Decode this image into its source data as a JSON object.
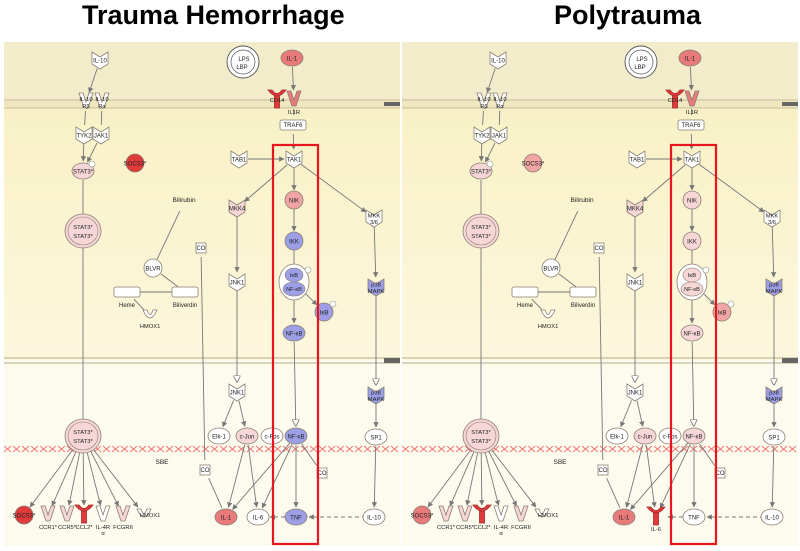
{
  "panels": [
    {
      "title": "Trauma Hemorrhage",
      "nodes": [
        {
          "id": "il10_top",
          "label": "IL-10",
          "shape": "chevron",
          "c": "w"
        },
        {
          "id": "lps",
          "label": "LPS",
          "label2": "LBP",
          "shape": "lps"
        },
        {
          "id": "il1_top",
          "label": "IL-1",
          "shape": "oval",
          "c": "r2"
        },
        {
          "id": "il10rb",
          "label": "IL-10",
          "label2": "Rβ",
          "shape": "recv",
          "c": "w"
        },
        {
          "id": "il10ra",
          "label": "IL-10",
          "label2": "Rα",
          "shape": "recv",
          "c": "w"
        },
        {
          "id": "cd14",
          "label": "CD14",
          "shape": "recY",
          "c": "r3"
        },
        {
          "id": "il1r",
          "label": "IL1R",
          "shape": "recv",
          "c": "r2"
        },
        {
          "id": "traf6",
          "label": "TRAF6",
          "shape": "rect",
          "c": "w"
        },
        {
          "id": "tyk2",
          "label": "TYK2",
          "shape": "chevron",
          "c": "w"
        },
        {
          "id": "jak1",
          "label": "JAK1",
          "shape": "chevron",
          "c": "w"
        },
        {
          "id": "socs3_t",
          "label": "SOCS3*",
          "shape": "circ",
          "c": "r3"
        },
        {
          "id": "stat3_t",
          "label": "STAT3*",
          "shape": "oval",
          "c": "p"
        },
        {
          "id": "tab1",
          "label": "TAB1",
          "shape": "chevron",
          "c": "w"
        },
        {
          "id": "tak1",
          "label": "TAK1",
          "shape": "chevron",
          "c": "w"
        },
        {
          "id": "mkk4",
          "label": "MKK4",
          "shape": "chevron",
          "c": "p"
        },
        {
          "id": "nik",
          "label": "NIK",
          "shape": "circ",
          "c": "r1"
        },
        {
          "id": "mkk36",
          "label": "MKK",
          "label2": "3/6",
          "shape": "chevron",
          "c": "w"
        },
        {
          "id": "stat3d",
          "label": "STAT3*",
          "label2": "STAT3*",
          "shape": "dimer",
          "c": "p"
        },
        {
          "id": "bilirubin",
          "label": "Bilirubin",
          "shape": "text"
        },
        {
          "id": "co_a",
          "label": "CO",
          "shape": "sq",
          "c": "w"
        },
        {
          "id": "ikk",
          "label": "IKK",
          "shape": "circ",
          "c": "b"
        },
        {
          "id": "blvr",
          "label": "BLVR",
          "shape": "circ",
          "c": "w"
        },
        {
          "id": "jnk1_a",
          "label": "JNK1",
          "shape": "chevron",
          "c": "w"
        },
        {
          "id": "ikb_nfkb",
          "label": "IκB",
          "label2": "NF-κB",
          "shape": "dimer2",
          "c": "b"
        },
        {
          "id": "p38_a",
          "label": "p38",
          "label2": "MAPK",
          "shape": "chevron",
          "c": "b"
        },
        {
          "id": "heme",
          "label": "Heme",
          "shape": "rect",
          "c": "w"
        },
        {
          "id": "biliverdin",
          "label": "Biliverdin",
          "shape": "rect",
          "c": "w"
        },
        {
          "id": "ikb_p",
          "label": "IκB",
          "shape": "circ",
          "c": "b"
        },
        {
          "id": "hmox1_t",
          "label": "HMOX1",
          "shape": "bowl",
          "c": "w"
        },
        {
          "id": "nfkb_a",
          "label": "NF-κB",
          "shape": "oval",
          "c": "b"
        },
        {
          "id": "jnk1_b",
          "label": "JNK1",
          "shape": "chevron",
          "c": "w"
        },
        {
          "id": "p38_b",
          "label": "p38",
          "label2": "MAPK",
          "shape": "chevron",
          "c": "b"
        },
        {
          "id": "stat3d2",
          "label": "STAT3*",
          "label2": "STAT3*",
          "shape": "dimer",
          "c": "p"
        },
        {
          "id": "elk1",
          "label": "Elk-1",
          "shape": "oval",
          "c": "w"
        },
        {
          "id": "cjun",
          "label": "c-Jun",
          "shape": "oval",
          "c": "p"
        },
        {
          "id": "cfos",
          "label": "c-Fos",
          "shape": "oval",
          "c": "w"
        },
        {
          "id": "nfkb_b",
          "label": "NF-κB",
          "shape": "oval",
          "c": "b"
        },
        {
          "id": "sp1",
          "label": "SP1",
          "shape": "oval",
          "c": "w"
        },
        {
          "id": "sbe",
          "label": "SBE",
          "shape": "text"
        },
        {
          "id": "co_b",
          "label": "CO",
          "shape": "sq",
          "c": "w"
        },
        {
          "id": "co_c",
          "label": "CO",
          "shape": "sq",
          "c": "w"
        },
        {
          "id": "socs3_b",
          "label": "SOCS3*",
          "shape": "circ",
          "c": "r3"
        },
        {
          "id": "ccr1",
          "label": "CCR1*",
          "shape": "recv",
          "c": "p"
        },
        {
          "id": "ccr5",
          "label": "CCR5*",
          "shape": "recv",
          "c": "p"
        },
        {
          "id": "ccl2",
          "label": "CCL2*",
          "shape": "recY",
          "c": "r3"
        },
        {
          "id": "il4r",
          "label": "IL-4R",
          "label2": "α",
          "shape": "recv",
          "c": "w"
        },
        {
          "id": "fcgrii",
          "label": "FCGRII",
          "shape": "recv",
          "c": "p"
        },
        {
          "id": "hmox1_b",
          "label": "HMOX1",
          "shape": "bowl",
          "c": "w"
        },
        {
          "id": "il1_b",
          "label": "IL-1",
          "shape": "oval",
          "c": "r2"
        },
        {
          "id": "il6",
          "label": "IL-6",
          "shape": "oval",
          "c": "w"
        },
        {
          "id": "tnf",
          "label": "TNF",
          "shape": "oval",
          "c": "b"
        },
        {
          "id": "il10_b",
          "label": "IL-10",
          "shape": "oval",
          "c": "w"
        }
      ]
    },
    {
      "title": "Polytrauma",
      "nodes": [
        {
          "id": "il10_top",
          "label": "IL-10",
          "shape": "chevron",
          "c": "w"
        },
        {
          "id": "lps",
          "label": "LPS",
          "label2": "LBP",
          "shape": "lps"
        },
        {
          "id": "il1_top",
          "label": "IL-1",
          "shape": "oval",
          "c": "r2"
        },
        {
          "id": "il10rb",
          "label": "IL-10",
          "label2": "Rβ",
          "shape": "recv",
          "c": "w"
        },
        {
          "id": "il10ra",
          "label": "IL-10",
          "label2": "Rα",
          "shape": "recv",
          "c": "w"
        },
        {
          "id": "cd14",
          "label": "CD14",
          "shape": "recY",
          "c": "r3"
        },
        {
          "id": "il1r",
          "label": "IL1R",
          "shape": "recv",
          "c": "r2"
        },
        {
          "id": "traf6",
          "label": "TRAF6",
          "shape": "rect",
          "c": "w"
        },
        {
          "id": "tyk2",
          "label": "TYK2",
          "shape": "chevron",
          "c": "w"
        },
        {
          "id": "jak1",
          "label": "JAK1",
          "shape": "chevron",
          "c": "w"
        },
        {
          "id": "socs3_t",
          "label": "SOCS3*",
          "shape": "circ",
          "c": "r1"
        },
        {
          "id": "stat3_t",
          "label": "STAT3*",
          "shape": "oval",
          "c": "p"
        },
        {
          "id": "tab1",
          "label": "TAB1",
          "shape": "chevron",
          "c": "w"
        },
        {
          "id": "tak1",
          "label": "TAK1",
          "shape": "chevron",
          "c": "w"
        },
        {
          "id": "mkk4",
          "label": "MKK4",
          "shape": "chevron",
          "c": "p"
        },
        {
          "id": "nik",
          "label": "NIK",
          "shape": "circ",
          "c": "p"
        },
        {
          "id": "mkk36",
          "label": "MKK",
          "label2": "3/6",
          "shape": "chevron",
          "c": "w"
        },
        {
          "id": "stat3d",
          "label": "STAT3*",
          "label2": "STAT3*",
          "shape": "dimer",
          "c": "p"
        },
        {
          "id": "bilirubin",
          "label": "Bilirubin",
          "shape": "text"
        },
        {
          "id": "co_a",
          "label": "CO",
          "shape": "sq",
          "c": "w"
        },
        {
          "id": "ikk",
          "label": "IKK",
          "shape": "circ",
          "c": "p"
        },
        {
          "id": "blvr",
          "label": "BLVR",
          "shape": "circ",
          "c": "w"
        },
        {
          "id": "jnk1_a",
          "label": "JNK1",
          "shape": "chevron",
          "c": "w"
        },
        {
          "id": "ikb_nfkb",
          "label": "IκB",
          "label2": "NF-κB",
          "shape": "dimer2",
          "c": "p"
        },
        {
          "id": "p38_a",
          "label": "p38",
          "label2": "MAPK",
          "shape": "chevron",
          "c": "b"
        },
        {
          "id": "heme",
          "label": "Heme",
          "shape": "rect",
          "c": "w"
        },
        {
          "id": "biliverdin",
          "label": "Biliverdin",
          "shape": "rect",
          "c": "w"
        },
        {
          "id": "ikb_p",
          "label": "IκB",
          "shape": "circ",
          "c": "r1"
        },
        {
          "id": "hmox1_t",
          "label": "HMOX1",
          "shape": "bowl",
          "c": "w"
        },
        {
          "id": "nfkb_a",
          "label": "NF-κB",
          "shape": "oval",
          "c": "p"
        },
        {
          "id": "jnk1_b",
          "label": "JNK1",
          "shape": "chevron",
          "c": "w"
        },
        {
          "id": "p38_b",
          "label": "p38",
          "label2": "MAPK",
          "shape": "chevron",
          "c": "b"
        },
        {
          "id": "stat3d2",
          "label": "STAT3*",
          "label2": "STAT3*",
          "shape": "dimer",
          "c": "p"
        },
        {
          "id": "elk1",
          "label": "Elk-1",
          "shape": "oval",
          "c": "w"
        },
        {
          "id": "cjun",
          "label": "c-Jun",
          "shape": "oval",
          "c": "p"
        },
        {
          "id": "cfos",
          "label": "c-Fos",
          "shape": "oval",
          "c": "w"
        },
        {
          "id": "nfkb_b",
          "label": "NF-κB",
          "shape": "oval",
          "c": "p"
        },
        {
          "id": "sp1",
          "label": "SP1",
          "shape": "oval",
          "c": "w"
        },
        {
          "id": "sbe",
          "label": "SBE",
          "shape": "text"
        },
        {
          "id": "co_b",
          "label": "CO",
          "shape": "sq",
          "c": "w"
        },
        {
          "id": "co_c",
          "label": "CO",
          "shape": "sq",
          "c": "w"
        },
        {
          "id": "socs3_b",
          "label": "SOCS3*",
          "shape": "circ",
          "c": "r2"
        },
        {
          "id": "ccr1",
          "label": "CCR1*",
          "shape": "recv",
          "c": "p"
        },
        {
          "id": "ccr5",
          "label": "CCR5*",
          "shape": "recv",
          "c": "p"
        },
        {
          "id": "ccl2",
          "label": "CCL2*",
          "shape": "recY",
          "c": "r3"
        },
        {
          "id": "il4r",
          "label": "IL-4R",
          "label2": "α",
          "shape": "recv",
          "c": "w"
        },
        {
          "id": "fcgrii",
          "label": "FCGRII",
          "shape": "recv",
          "c": "p"
        },
        {
          "id": "hmox1_b",
          "label": "HMOX1",
          "shape": "bowl",
          "c": "w"
        },
        {
          "id": "il1_b",
          "label": "IL-1",
          "shape": "oval",
          "c": "r2"
        },
        {
          "id": "il6",
          "label": "IL-6",
          "shape": "recY",
          "c": "r3"
        },
        {
          "id": "tnf",
          "label": "TNF",
          "shape": "oval",
          "c": "w"
        },
        {
          "id": "il10_b",
          "label": "IL-10",
          "shape": "oval",
          "c": "w"
        }
      ]
    }
  ],
  "colors": {
    "w": "#ffffff",
    "p": "#f6d6d6",
    "r1": "#f0a4a4",
    "r2": "#e97a7a",
    "r3": "#e03a3a",
    "b": "#9c9fe6",
    "highlight_box": "#e8141e",
    "membrane": "#eee7bf",
    "cytoplasm_top": "#f8f1c6",
    "nucleus": "#fdfbee",
    "dna": "#ef7070"
  }
}
